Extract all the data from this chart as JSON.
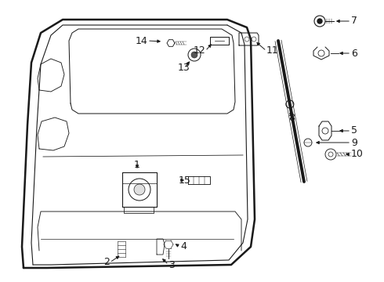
{
  "bg_color": "#ffffff",
  "line_color": "#1a1a1a",
  "lw_main": 1.4,
  "lw_detail": 0.8,
  "lw_thin": 0.5,
  "font_size": 9,
  "fig_w": 4.9,
  "fig_h": 3.6,
  "dpi": 100
}
